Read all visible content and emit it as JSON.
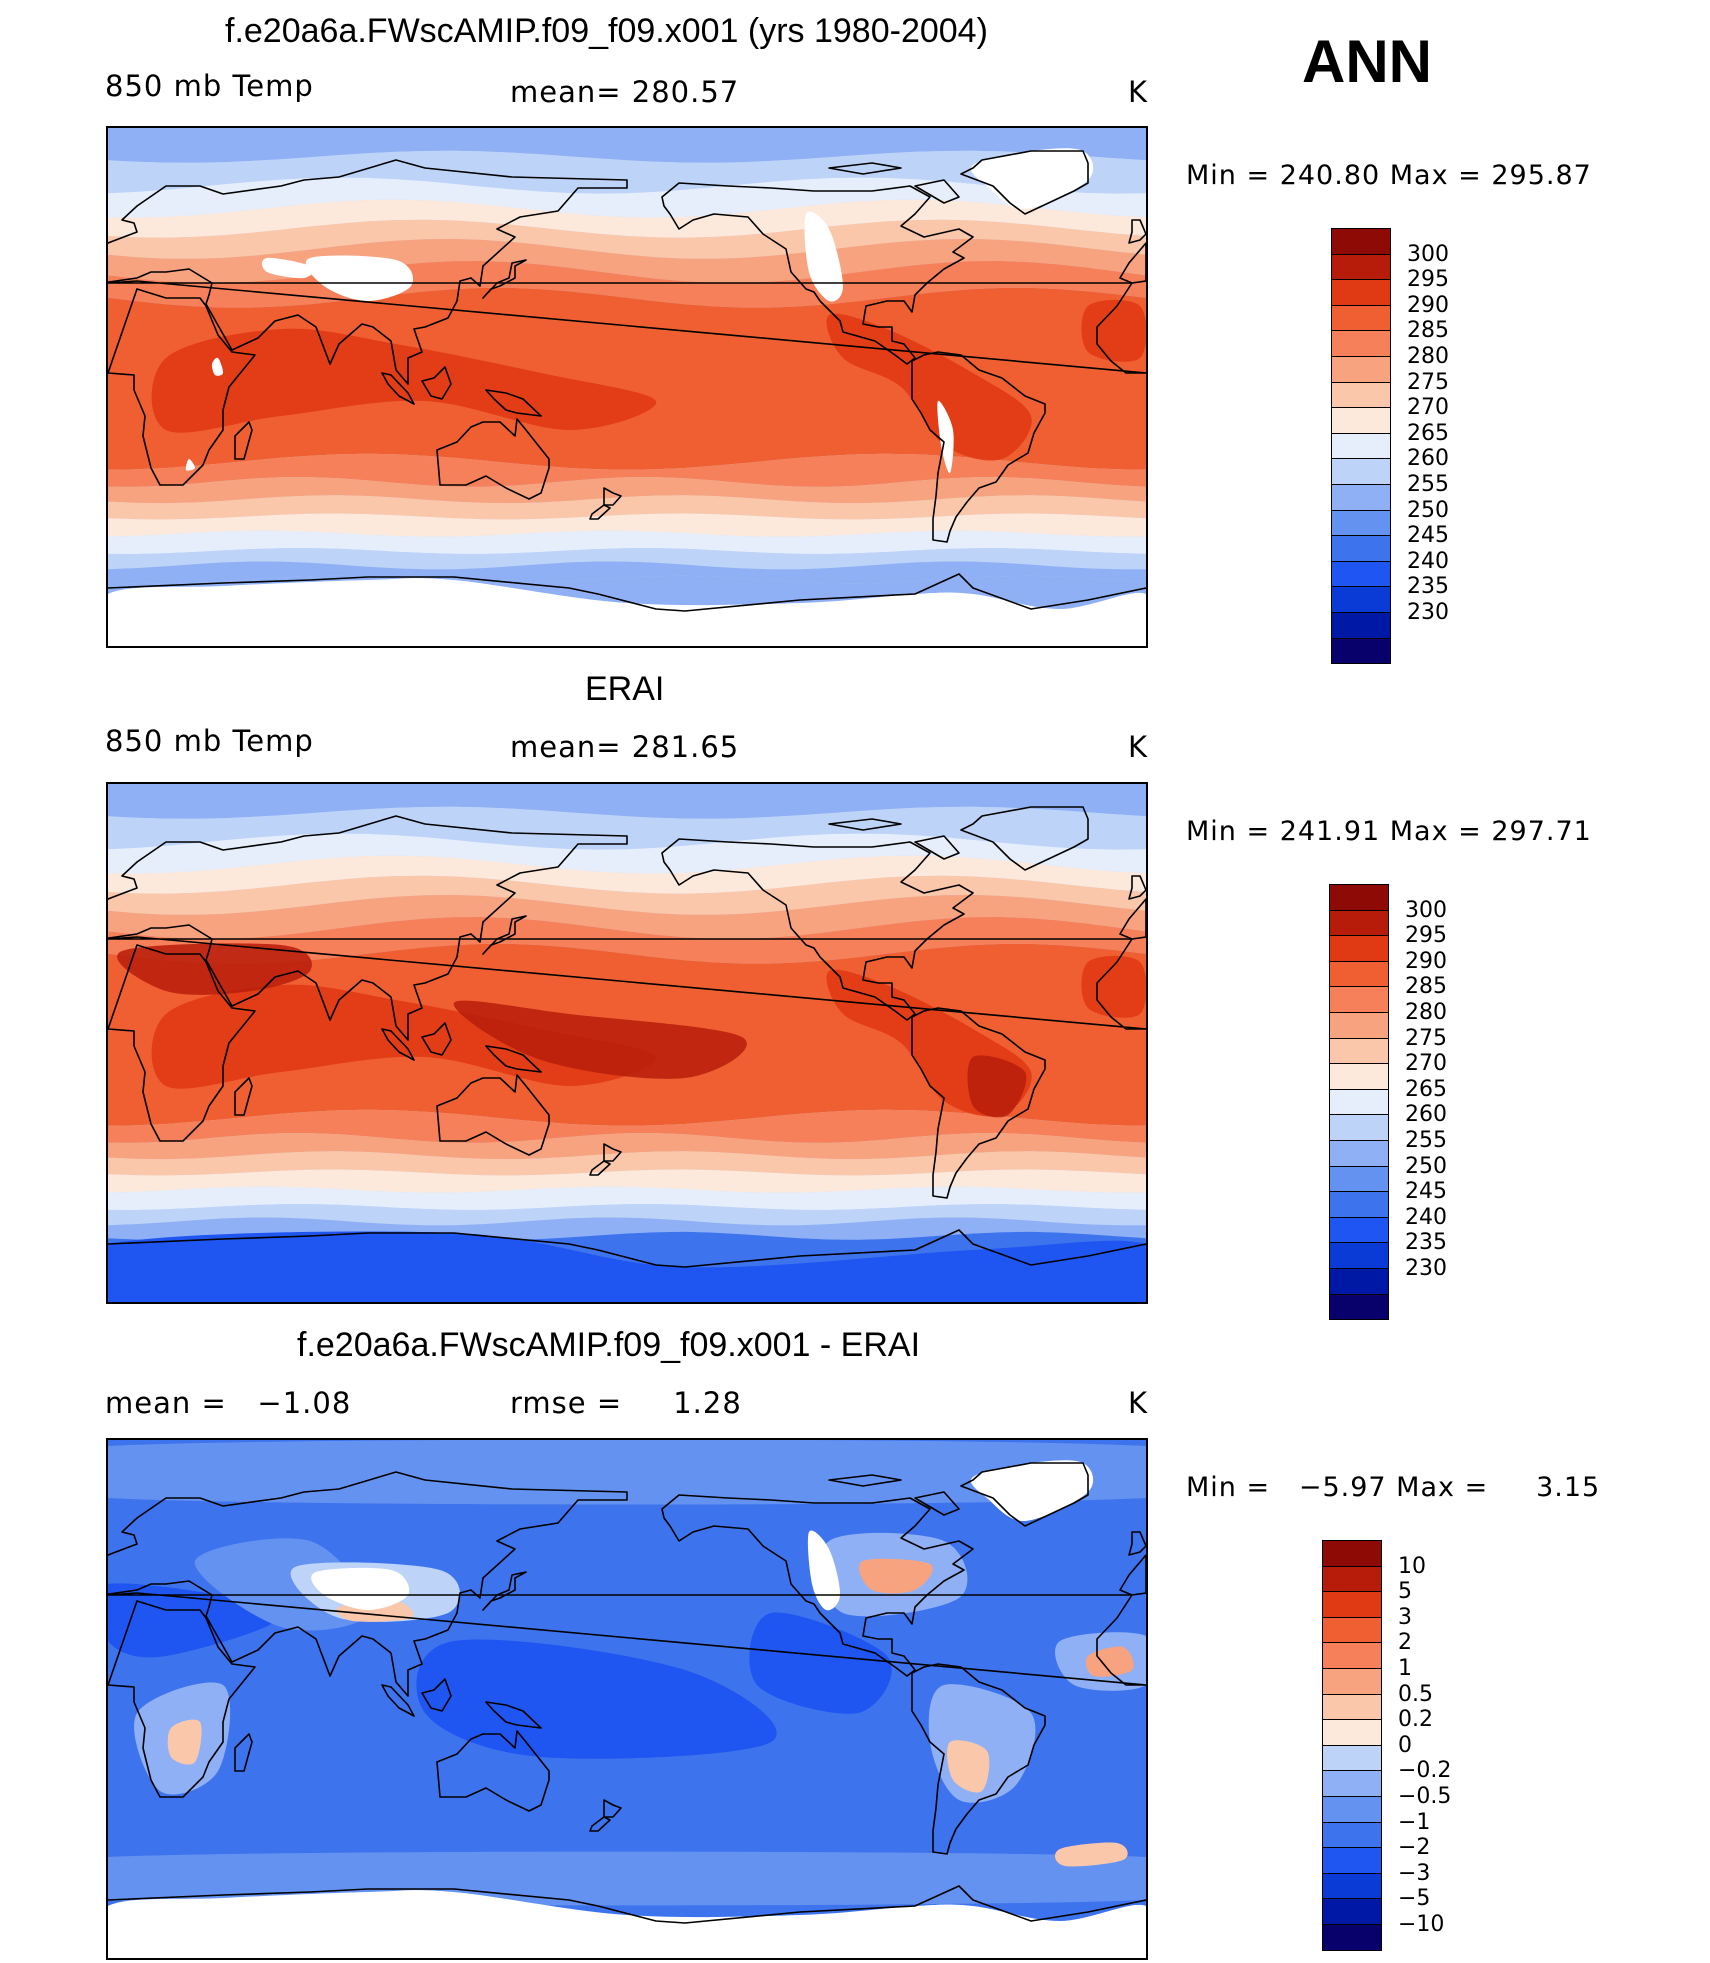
{
  "annual_label": "ANN",
  "palette_abs": [
    "#08006b",
    "#0018a6",
    "#0a3bd6",
    "#1f55f0",
    "#3e73ee",
    "#6492f0",
    "#8fb0f4",
    "#bdd3f8",
    "#e6eefb",
    "#fde9dc",
    "#fbc7ab",
    "#f8a37f",
    "#f5805a",
    "#f05f32",
    "#e03a14",
    "#b71c0a",
    "#8e0a05"
  ],
  "palette_diff": [
    "#08006b",
    "#0018a6",
    "#0a3bd6",
    "#1f55f0",
    "#3e73ee",
    "#6492f0",
    "#8fb0f4",
    "#bdd3f8",
    "#fde9dc",
    "#fbc7ab",
    "#f8a37f",
    "#f5805a",
    "#f05f32",
    "#e03a14",
    "#b71c0a",
    "#8e0a05"
  ],
  "panels": [
    {
      "title": "f.e20a6a.FWscAMIP.f09_f09.x001 (yrs 1980-2004)",
      "left_label": "850 mb Temp",
      "center_label": "mean= 280.57",
      "units": "K",
      "minmax": "Min = 240.80 Max = 295.87",
      "min": 240.8,
      "max": 295.87,
      "colorbar_labels": [
        "300",
        "295",
        "290",
        "285",
        "280",
        "275",
        "270",
        "265",
        "260",
        "255",
        "250",
        "245",
        "240",
        "235",
        "230"
      ],
      "missing_topography": true
    },
    {
      "title": "ERAI",
      "left_label": "850 mb Temp",
      "center_label": "mean= 281.65",
      "units": "K",
      "minmax": "Min = 241.91 Max = 297.71",
      "min": 241.91,
      "max": 297.71,
      "colorbar_labels": [
        "300",
        "295",
        "290",
        "285",
        "280",
        "275",
        "270",
        "265",
        "260",
        "255",
        "250",
        "245",
        "240",
        "235",
        "230"
      ],
      "missing_topography": false
    },
    {
      "title": "f.e20a6a.FWscAMIP.f09_f09.x001 - ERAI",
      "left_label": "mean =   −1.08",
      "center_label": "rmse =     1.28",
      "units": "K",
      "minmax": "Min =   −5.97 Max =     3.15",
      "min": -5.97,
      "max": 3.15,
      "colorbar_labels": [
        "10",
        "5",
        "3",
        "2",
        "1",
        "0.5",
        "0.2",
        "0",
        "−0.2",
        "−0.5",
        "−1",
        "−2",
        "−3",
        "−5",
        "−10"
      ],
      "missing_topography": true
    }
  ]
}
